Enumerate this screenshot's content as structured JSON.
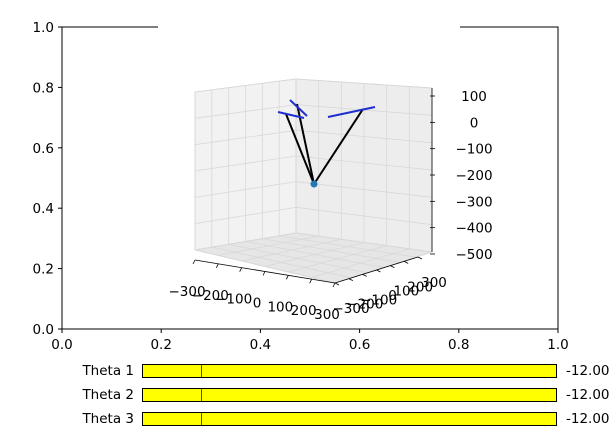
{
  "main_axes": {
    "x_ticks": [
      "0.0",
      "0.2",
      "0.4",
      "0.6",
      "0.8",
      "1.0"
    ],
    "y_ticks": [
      "0.0",
      "0.2",
      "0.4",
      "0.6",
      "0.8",
      "1.0"
    ]
  },
  "axes3d": {
    "x_ticks": [
      "−300",
      "−200",
      "−100",
      "0",
      "100",
      "200",
      "300"
    ],
    "y_ticks": [
      "−300",
      "−200",
      "−100",
      "0",
      "100",
      "200",
      "300"
    ],
    "z_ticks": [
      "100",
      "0",
      "−100",
      "−200",
      "−300",
      "−400",
      "−500"
    ],
    "grid": true,
    "colors": {
      "legs": "#000000",
      "platform": "#1f2fcf",
      "base_point": "#1f77b4",
      "pane": "#f2f2f2",
      "grid": "#d8d8d8"
    }
  },
  "sliders": [
    {
      "label": "Theta 1",
      "value": "-12.00",
      "fraction": 0.14
    },
    {
      "label": "Theta 2",
      "value": "-12.00",
      "fraction": 0.14
    },
    {
      "label": "Theta 3",
      "value": "-12.00",
      "fraction": 0.14
    }
  ],
  "slider_colors": {
    "track": "#ffff00",
    "marker": "#ff0000"
  }
}
